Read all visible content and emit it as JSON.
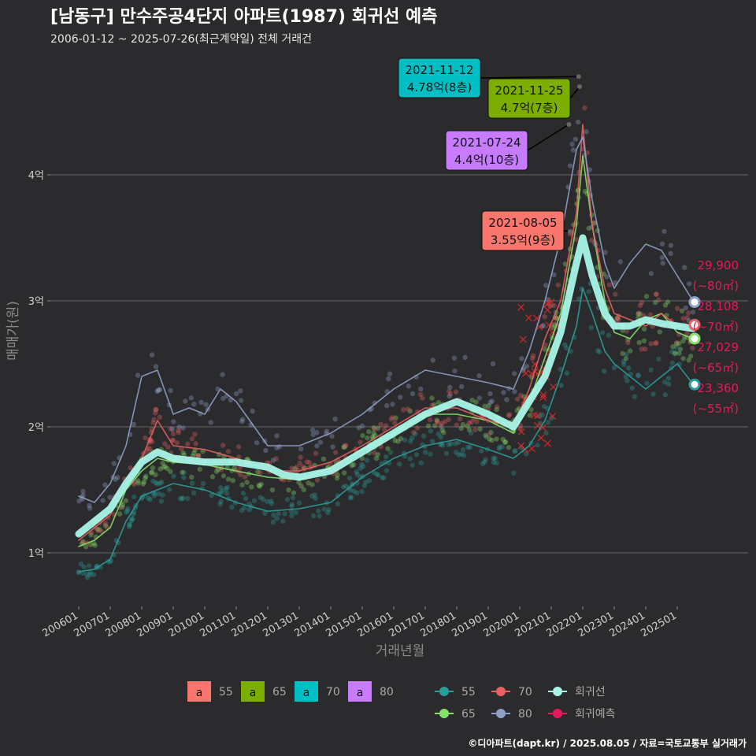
{
  "title": "[남동구] 만수주공4단지 아파트(1987) 회귀선 예측",
  "subtitle": "2006-01-12 ~ 2025-07-26(최근계약일) 전체 거래건",
  "credit": "©디아파트(dapt.kr) / 2025.08.05 / 자료=국토교통부 실거래가",
  "colors": {
    "bg": "#2b2b2d",
    "grid": "#5a5a5c",
    "s55": "#f8766d",
    "s65": "#7cae00",
    "s70": "#00bfc4",
    "s80": "#c77cff",
    "p55": "#2a9d9a",
    "p65": "#86e06a",
    "p70": "#e86060",
    "p80": "#8ea0c8",
    "reg": "#a8f5e8",
    "fore": "#e8185e"
  },
  "legend": {
    "label_items": [
      {
        "key": "a",
        "label": "55",
        "color": "#f8766d"
      },
      {
        "key": "a",
        "label": "65",
        "color": "#7cae00"
      },
      {
        "key": "a",
        "label": "70",
        "color": "#00bfc4"
      },
      {
        "key": "a",
        "label": "80",
        "color": "#c77cff"
      }
    ],
    "line_items": [
      {
        "label": "55",
        "color": "#2a9d9a"
      },
      {
        "label": "70",
        "color": "#e86060"
      },
      {
        "label": "회귀선",
        "color": "#a8f5e8"
      },
      {
        "label": "65",
        "color": "#86e06a"
      },
      {
        "label": "80",
        "color": "#8ea0c8"
      },
      {
        "label": "회귀예측",
        "color": "#e8185e"
      }
    ]
  },
  "chart_data": {
    "type": "line",
    "xlabel": "거래년월",
    "ylabel": "매매가(원)",
    "x_range": [
      2006.0,
      2025.6
    ],
    "ylim": [
      0.6,
      4.9
    ],
    "x_ticks": [
      "200601",
      "200701",
      "200801",
      "200901",
      "201001",
      "201101",
      "201201",
      "201301",
      "201401",
      "201501",
      "201601",
      "201701",
      "201801",
      "201901",
      "202001",
      "202101",
      "202201",
      "202301",
      "202401",
      "202501"
    ],
    "y_ticks": [
      {
        "v": 1,
        "label": "1억"
      },
      {
        "v": 2,
        "label": "2억"
      },
      {
        "v": 3,
        "label": "3억"
      },
      {
        "v": 4,
        "label": "4억"
      }
    ],
    "grid": true,
    "series": [
      {
        "name": "55",
        "key": "p55",
        "x": [
          2006.0,
          2006.5,
          2007.0,
          2007.5,
          2008.0,
          2008.5,
          2009.0,
          2010.0,
          2011.0,
          2012.0,
          2013.0,
          2014.0,
          2015.0,
          2016.0,
          2017.0,
          2018.0,
          2019.0,
          2019.8,
          2020.3,
          2020.8,
          2021.3,
          2021.8,
          2022.0,
          2022.3,
          2022.7,
          2023.0,
          2023.5,
          2024.0,
          2024.5,
          2025.0,
          2025.5
        ],
        "values": [
          0.85,
          0.87,
          0.95,
          1.25,
          1.45,
          1.5,
          1.55,
          1.5,
          1.4,
          1.33,
          1.35,
          1.4,
          1.6,
          1.75,
          1.85,
          1.9,
          1.82,
          1.75,
          1.85,
          2.05,
          2.4,
          2.8,
          3.1,
          2.9,
          2.6,
          2.5,
          2.4,
          2.3,
          2.4,
          2.5,
          2.34
        ]
      },
      {
        "name": "65",
        "key": "p65",
        "x": [
          2006.0,
          2006.5,
          2007.0,
          2007.5,
          2008.0,
          2008.5,
          2009.0,
          2010.0,
          2011.0,
          2012.0,
          2013.0,
          2014.0,
          2015.0,
          2016.0,
          2017.0,
          2018.0,
          2019.0,
          2019.8,
          2020.3,
          2020.8,
          2021.3,
          2021.8,
          2022.0,
          2022.3,
          2022.7,
          2023.0,
          2023.5,
          2024.0,
          2024.5,
          2025.0,
          2025.5
        ],
        "values": [
          1.05,
          1.1,
          1.2,
          1.5,
          1.65,
          1.75,
          1.72,
          1.7,
          1.65,
          1.6,
          1.58,
          1.68,
          1.82,
          1.95,
          2.1,
          2.1,
          2.05,
          1.95,
          2.2,
          2.55,
          2.9,
          3.6,
          4.15,
          3.6,
          3.0,
          2.75,
          2.7,
          2.85,
          2.9,
          2.75,
          2.7
        ]
      },
      {
        "name": "70",
        "key": "p70",
        "x": [
          2006.0,
          2006.5,
          2007.0,
          2007.5,
          2008.0,
          2008.5,
          2009.0,
          2010.0,
          2011.0,
          2012.0,
          2013.0,
          2014.0,
          2015.0,
          2016.0,
          2017.0,
          2018.0,
          2019.0,
          2019.8,
          2020.3,
          2020.8,
          2021.3,
          2021.8,
          2022.0,
          2022.3,
          2022.7,
          2023.0,
          2023.5,
          2024.0,
          2024.5,
          2025.0,
          2025.5
        ],
        "values": [
          1.1,
          1.2,
          1.3,
          1.55,
          1.75,
          2.05,
          1.85,
          1.82,
          1.75,
          1.65,
          1.65,
          1.72,
          1.85,
          2.0,
          2.15,
          2.15,
          2.05,
          2.0,
          2.3,
          2.7,
          3.0,
          3.7,
          4.4,
          3.6,
          3.1,
          2.9,
          2.85,
          2.8,
          2.9,
          2.8,
          2.81
        ]
      },
      {
        "name": "80",
        "key": "p80",
        "x": [
          2006.0,
          2006.5,
          2007.0,
          2007.5,
          2008.0,
          2008.5,
          2009.0,
          2009.5,
          2010.0,
          2010.5,
          2011.0,
          2012.0,
          2013.0,
          2014.0,
          2015.0,
          2016.0,
          2017.0,
          2018.0,
          2019.0,
          2019.8,
          2020.3,
          2020.8,
          2021.3,
          2021.8,
          2022.0,
          2022.3,
          2022.7,
          2023.0,
          2023.5,
          2024.0,
          2024.5,
          2025.0,
          2025.5
        ],
        "values": [
          1.45,
          1.4,
          1.55,
          1.85,
          2.4,
          2.45,
          2.1,
          2.15,
          2.1,
          2.3,
          2.2,
          1.85,
          1.85,
          1.95,
          2.1,
          2.3,
          2.45,
          2.4,
          2.35,
          2.3,
          2.6,
          3.0,
          3.5,
          4.2,
          4.3,
          3.8,
          3.3,
          3.1,
          3.3,
          3.45,
          3.4,
          3.2,
          3.0
        ]
      },
      {
        "name": "회귀선",
        "key": "reg",
        "x": [
          2006.0,
          2006.5,
          2007.0,
          2007.5,
          2008.0,
          2008.5,
          2009.0,
          2010.0,
          2011.0,
          2012.0,
          2012.5,
          2013.0,
          2014.0,
          2015.0,
          2016.0,
          2017.0,
          2018.0,
          2019.0,
          2019.8,
          2020.3,
          2020.8,
          2021.3,
          2021.8,
          2022.0,
          2022.3,
          2022.7,
          2023.0,
          2023.5,
          2024.0,
          2024.5,
          2025.0,
          2025.5
        ],
        "values": [
          1.15,
          1.25,
          1.35,
          1.55,
          1.72,
          1.8,
          1.75,
          1.72,
          1.72,
          1.68,
          1.62,
          1.6,
          1.65,
          1.8,
          1.95,
          2.1,
          2.2,
          2.1,
          2.0,
          2.2,
          2.4,
          2.75,
          3.3,
          3.5,
          3.2,
          2.9,
          2.8,
          2.8,
          2.85,
          2.82,
          2.8,
          2.78
        ]
      }
    ],
    "scatter_note": "individual transactions shown as semi-transparent points by size",
    "forecast_points": [
      {
        "area": "80",
        "value": 2.99,
        "label": "29,900",
        "sub": "(~80㎡)"
      },
      {
        "area": "70",
        "value": 2.81,
        "label": "28,108",
        "sub": "(~70㎡)"
      },
      {
        "area": "65",
        "value": 2.7,
        "label": "27,029",
        "sub": "(~65㎡)"
      },
      {
        "area": "55",
        "value": 2.336,
        "label": "23,360",
        "sub": "(~55㎡)"
      }
    ],
    "annotations": [
      {
        "date": "2021-11-12",
        "text": "4.78억(8층)",
        "x": 2021.87,
        "y": 4.78,
        "color": "#00bfc4"
      },
      {
        "date": "2021-11-25",
        "text": "4.7억(7층)",
        "x": 2021.9,
        "y": 4.7,
        "color": "#7cae00"
      },
      {
        "date": "2021-07-24",
        "text": "4.4억(10층)",
        "x": 2021.56,
        "y": 4.4,
        "color": "#c77cff"
      },
      {
        "date": "2021-08-05",
        "text": "3.55억(9층)",
        "x": 2021.6,
        "y": 3.55,
        "color": "#f8766d"
      }
    ]
  }
}
